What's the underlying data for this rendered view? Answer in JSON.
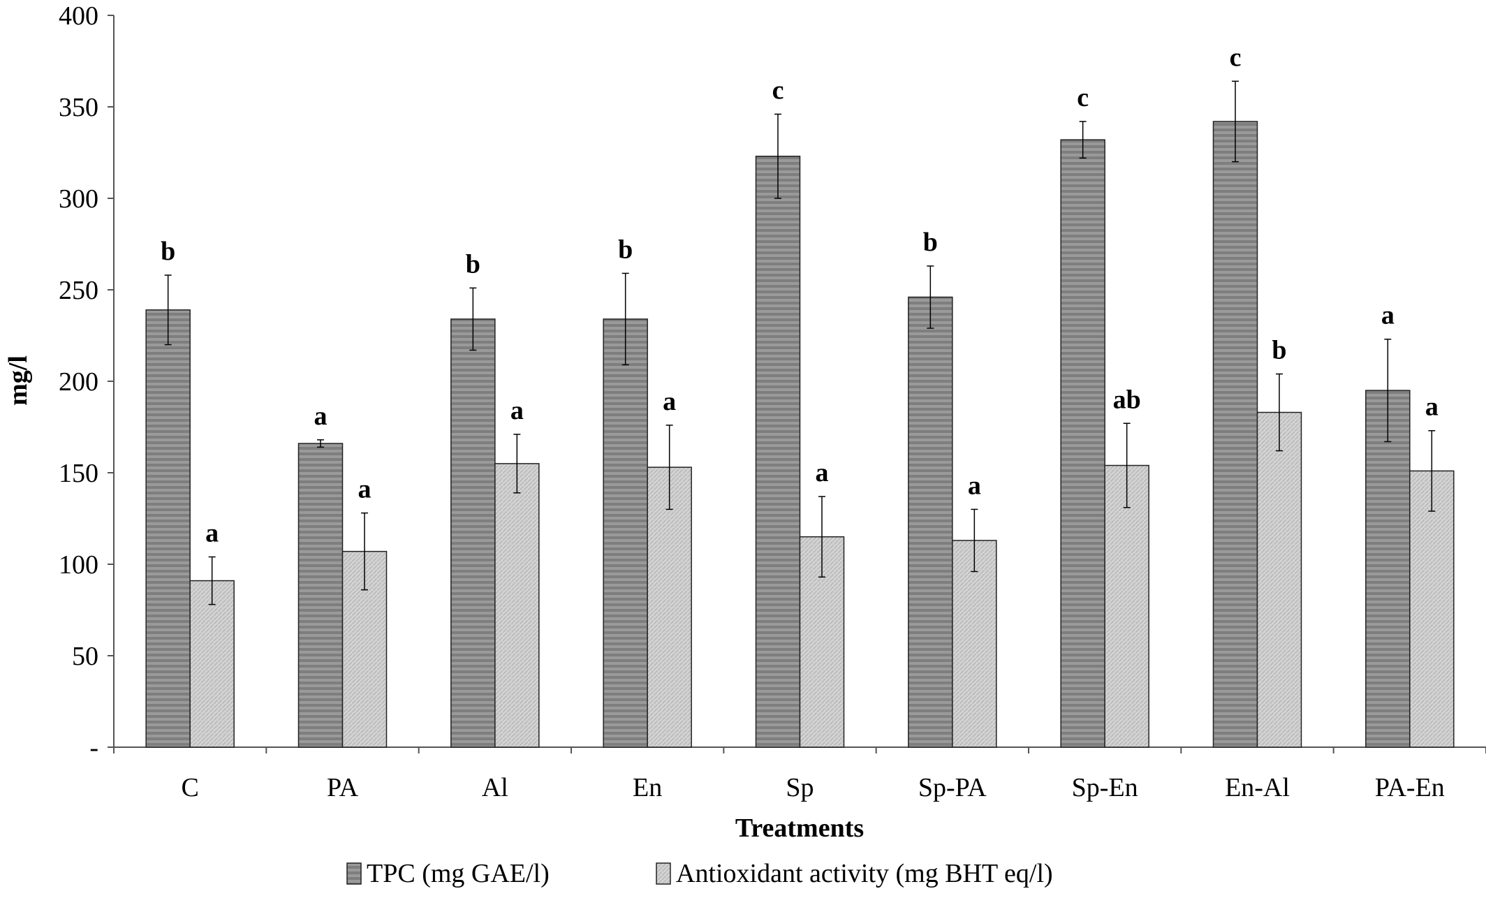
{
  "chart_data": {
    "type": "bar",
    "xlabel": "Treatments",
    "ylabel": "mg/l",
    "ylim": [
      0,
      400
    ],
    "yticks": [
      {
        "value": 0,
        "label": "-"
      },
      {
        "value": 50,
        "label": "50"
      },
      {
        "value": 100,
        "label": "100"
      },
      {
        "value": 150,
        "label": "150"
      },
      {
        "value": 200,
        "label": "200"
      },
      {
        "value": 250,
        "label": "250"
      },
      {
        "value": 300,
        "label": "300"
      },
      {
        "value": 350,
        "label": "350"
      },
      {
        "value": 400,
        "label": "400"
      }
    ],
    "categories": [
      "C",
      "PA",
      "Al",
      "En",
      "Sp",
      "Sp-PA",
      "Sp-En",
      "En-Al",
      "PA-En"
    ],
    "series": [
      {
        "name": "TPC (mg GAE/l)",
        "color": "#9a9a9a",
        "stripe": "#7e7e7e",
        "values": [
          239,
          166,
          234,
          234,
          323,
          246,
          332,
          342,
          195
        ],
        "errors": [
          19,
          2,
          17,
          25,
          23,
          17,
          10,
          22,
          28
        ],
        "significance": [
          "b",
          "a",
          "b",
          "b",
          "c",
          "b",
          "c",
          "c",
          "a"
        ]
      },
      {
        "name": "Antioxidant activity (mg BHT eq/l)",
        "color": "#d4d4d4",
        "stripe": "#bcbcbc",
        "values": [
          91,
          107,
          155,
          153,
          115,
          113,
          154,
          183,
          151
        ],
        "errors": [
          13,
          21,
          16,
          23,
          22,
          17,
          23,
          21,
          22
        ],
        "significance": [
          "a",
          "a",
          "a",
          "a",
          "a",
          "a",
          "ab",
          "b",
          "a"
        ]
      }
    ],
    "legend_position": "bottom"
  }
}
